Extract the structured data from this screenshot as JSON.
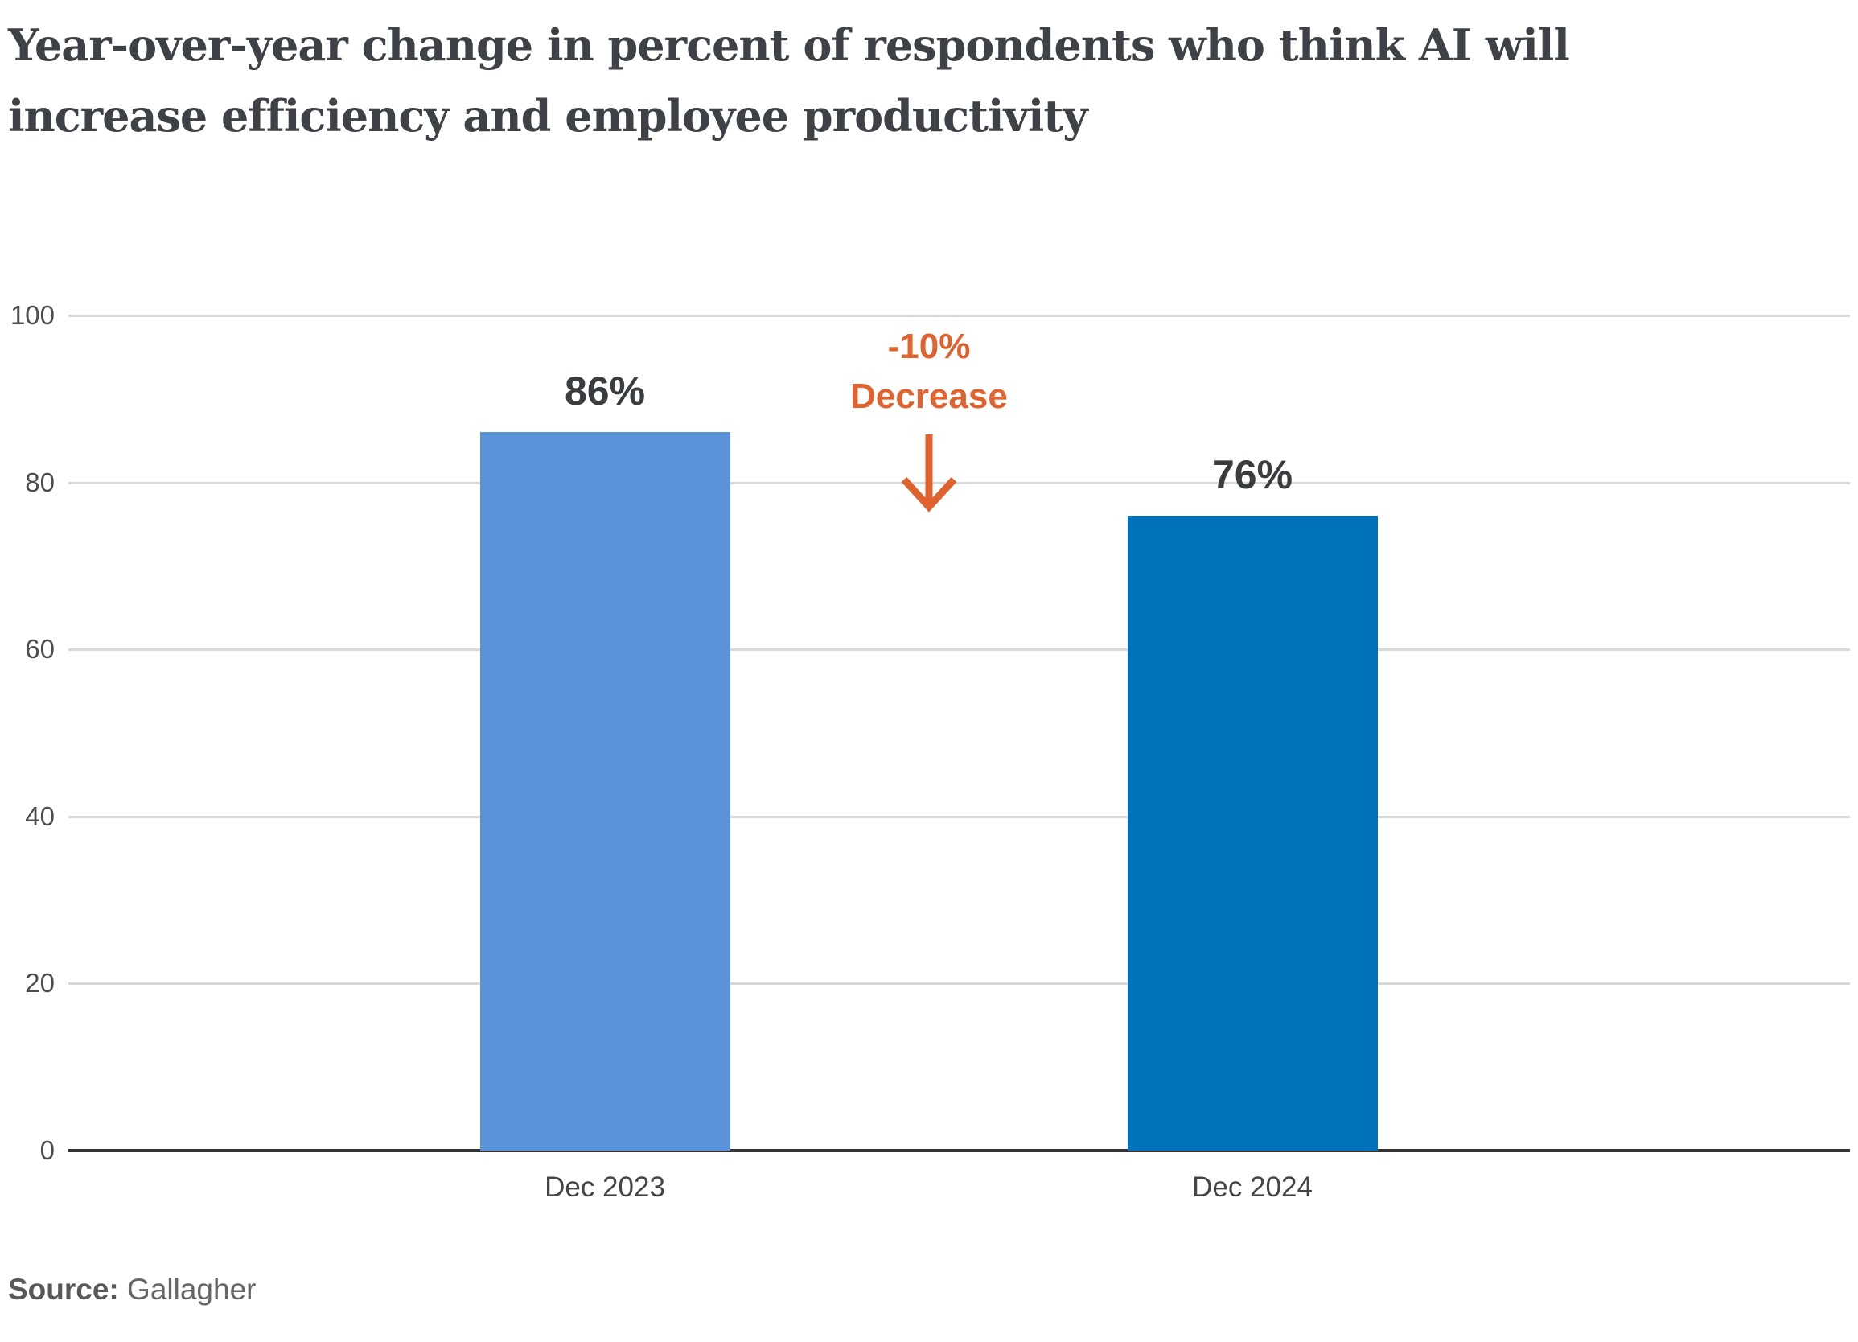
{
  "title": {
    "line1": "Year-over-year change in percent of respondents who think AI will",
    "line2": "increase efficiency and employee productivity"
  },
  "chart_data": {
    "type": "bar",
    "title": "Year-over-year change in percent of respondents who think AI will increase efficiency and employee productivity",
    "categories": [
      "Dec 2023",
      "Dec 2024"
    ],
    "values": [
      86,
      76
    ],
    "value_labels": [
      "86%",
      "76%"
    ],
    "bar_colors": [
      "#5b93d8",
      "#0072bc"
    ],
    "xlabel": "",
    "ylabel": "",
    "ylim": [
      0,
      100
    ],
    "yticks": [
      0,
      20,
      40,
      60,
      80,
      100
    ],
    "ytick_labels": [
      "0",
      "20",
      "40",
      "60",
      "80",
      "100"
    ],
    "grid": "horizontal",
    "legend": "none",
    "annotation": {
      "line1": "-10%",
      "line2": "Decrease",
      "color": "#e0632f"
    }
  },
  "annotation": {
    "line1": "-10%",
    "line2": "Decrease",
    "color": "#e0632f"
  },
  "source": {
    "label": "Source:",
    "value": "Gallagher"
  }
}
